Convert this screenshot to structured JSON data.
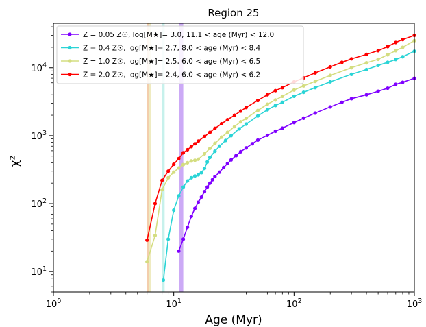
{
  "chart_data": {
    "type": "line",
    "title": "Region 25",
    "xlabel": "Age (Myr)",
    "ylabel": "χ²",
    "xscale": "log",
    "yscale": "log",
    "xlim": [
      1,
      1000
    ],
    "ylim": [
      5,
      45000
    ],
    "x_ticks": [
      {
        "value": 1,
        "base": "10",
        "exp": "0"
      },
      {
        "value": 10,
        "base": "10",
        "exp": "1"
      },
      {
        "value": 100,
        "base": "10",
        "exp": "2"
      },
      {
        "value": 1000,
        "base": "10",
        "exp": "3"
      }
    ],
    "y_ticks": [
      {
        "value": 10,
        "base": "10",
        "exp": "1"
      },
      {
        "value": 100,
        "base": "10",
        "exp": "2"
      },
      {
        "value": 1000,
        "base": "10",
        "exp": "3"
      },
      {
        "value": 10000,
        "base": "10",
        "exp": "4"
      }
    ],
    "grid": false,
    "legend_position": "top-left",
    "vertical_bands": [
      {
        "from": 11.1,
        "to": 12.0,
        "color": "#c39bf4"
      },
      {
        "from": 8.0,
        "to": 8.4,
        "color": "#bdeee9"
      },
      {
        "from": 6.0,
        "to": 6.5,
        "color": "#ece8b6"
      },
      {
        "from": 6.0,
        "to": 6.2,
        "color": "#f3c9a8"
      }
    ],
    "series": [
      {
        "name": "Z = 0.05 Z☉, log[M★]= 3.0, 11.1 < age (Myr) < 12.0",
        "color": "#7f00ff",
        "x": [
          11,
          12,
          13,
          14,
          15,
          16,
          17,
          18,
          19,
          20,
          21,
          22,
          24,
          26,
          28,
          30,
          33,
          36,
          40,
          45,
          50,
          60,
          70,
          80,
          100,
          120,
          150,
          200,
          250,
          300,
          400,
          500,
          600,
          700,
          800,
          1000
        ],
        "y": [
          20,
          30,
          45,
          65,
          85,
          105,
          125,
          150,
          175,
          200,
          225,
          250,
          290,
          340,
          390,
          440,
          510,
          580,
          660,
          760,
          860,
          1010,
          1160,
          1290,
          1560,
          1810,
          2150,
          2650,
          3100,
          3500,
          4000,
          4500,
          5000,
          5700,
          6100,
          7000
        ]
      },
      {
        "name": "Z = 0.4 Z☉, log[M★]= 2.7, 8.0 < age (Myr) < 8.4",
        "color": "#2ad4d6",
        "x": [
          8.2,
          9,
          10,
          11,
          12,
          13,
          14,
          15,
          16,
          17,
          18,
          19,
          20,
          22,
          24,
          27,
          30,
          35,
          40,
          50,
          60,
          70,
          80,
          100,
          120,
          150,
          200,
          300,
          400,
          500,
          600,
          700,
          800,
          1000
        ],
        "y": [
          7.5,
          30,
          80,
          130,
          175,
          215,
          240,
          255,
          265,
          285,
          330,
          410,
          480,
          590,
          700,
          850,
          1000,
          1260,
          1480,
          1950,
          2400,
          2780,
          3100,
          3800,
          4350,
          5100,
          6200,
          8000,
          9400,
          10800,
          12000,
          13200,
          14500,
          17500
        ]
      },
      {
        "name": "Z = 1.0 Z☉, log[M★]= 2.5, 6.0 < age (Myr) < 6.5",
        "color": "#d4dd80",
        "x": [
          6.0,
          7.0,
          8.0,
          9,
          10,
          11,
          12,
          13,
          14,
          15,
          16,
          18,
          20,
          22,
          25,
          28,
          32,
          36,
          40,
          50,
          60,
          70,
          80,
          100,
          120,
          150,
          200,
          300,
          400,
          500,
          600,
          700,
          800,
          1000
        ],
        "y": [
          14,
          34,
          160,
          240,
          290,
          335,
          375,
          400,
          425,
          435,
          450,
          540,
          650,
          770,
          950,
          1120,
          1360,
          1600,
          1800,
          2350,
          2900,
          3350,
          3800,
          4700,
          5400,
          6300,
          7700,
          10000,
          11800,
          13300,
          15500,
          17800,
          20000,
          25000
        ]
      },
      {
        "name": "Z = 2.0 Z☉, log[M★]= 2.4, 6.0 < age (Myr) < 6.2",
        "color": "#ff0000",
        "x": [
          6.0,
          7.0,
          8.0,
          9,
          10,
          11,
          12,
          13,
          14,
          15,
          16,
          18,
          20,
          22,
          25,
          28,
          32,
          36,
          40,
          50,
          60,
          70,
          80,
          100,
          120,
          150,
          200,
          250,
          300,
          400,
          500,
          600,
          700,
          800,
          1000
        ],
        "y": [
          29,
          100,
          220,
          300,
          380,
          460,
          560,
          620,
          690,
          760,
          830,
          970,
          1120,
          1280,
          1500,
          1720,
          2000,
          2300,
          2600,
          3300,
          4000,
          4600,
          5100,
          6200,
          7100,
          8400,
          10300,
          12000,
          13500,
          15700,
          17800,
          20500,
          23500,
          26000,
          30000
        ]
      }
    ]
  }
}
